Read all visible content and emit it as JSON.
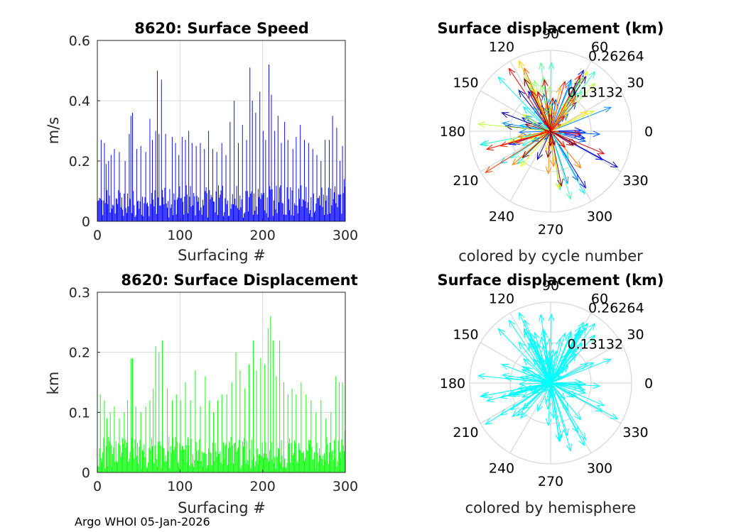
{
  "figure": {
    "footer": "Argo WHOI 05-Jan-2026"
  },
  "colors": {
    "speed_bars": "#0000ff",
    "disp_bars": "#00ff00",
    "hemisphere_arrows": "#00ffff",
    "grid": "#d9d9d9",
    "axis": "#262626"
  },
  "chart_data": [
    {
      "type": "bar",
      "title": "8620: Surface Speed",
      "xlabel": "Surfacing #",
      "ylabel": "m/s",
      "xlim": [
        0,
        300
      ],
      "ylim": [
        0,
        0.6
      ],
      "xticks": [
        "0",
        "100",
        "200",
        "300"
      ],
      "yticks": [
        "0",
        "0.2",
        "0.4",
        "0.6"
      ],
      "n": 300,
      "peaks": [
        [
          4,
          0.27
        ],
        [
          8,
          0.26
        ],
        [
          10,
          0.19
        ],
        [
          13,
          0.2
        ],
        [
          16,
          0.22
        ],
        [
          20,
          0.24
        ],
        [
          26,
          0.23
        ],
        [
          33,
          0.2
        ],
        [
          38,
          0.29
        ],
        [
          40,
          0.35
        ],
        [
          42,
          0.36
        ],
        [
          47,
          0.24
        ],
        [
          52,
          0.25
        ],
        [
          58,
          0.23
        ],
        [
          63,
          0.34
        ],
        [
          66,
          0.27
        ],
        [
          70,
          0.3
        ],
        [
          72,
          0.5
        ],
        [
          74,
          0.29
        ],
        [
          77,
          0.47
        ],
        [
          82,
          0.29
        ],
        [
          90,
          0.28
        ],
        [
          94,
          0.26
        ],
        [
          98,
          0.22
        ],
        [
          102,
          0.28
        ],
        [
          106,
          0.27
        ],
        [
          110,
          0.3
        ],
        [
          114,
          0.26
        ],
        [
          119,
          0.25
        ],
        [
          124,
          0.26
        ],
        [
          129,
          0.24
        ],
        [
          134,
          0.3
        ],
        [
          139,
          0.24
        ],
        [
          144,
          0.23
        ],
        [
          150,
          0.26
        ],
        [
          155,
          0.22
        ],
        [
          160,
          0.33
        ],
        [
          165,
          0.4
        ],
        [
          170,
          0.26
        ],
        [
          175,
          0.32
        ],
        [
          180,
          0.27
        ],
        [
          184,
          0.51
        ],
        [
          187,
          0.4
        ],
        [
          191,
          0.36
        ],
        [
          196,
          0.43
        ],
        [
          200,
          0.3
        ],
        [
          203,
          0.27
        ],
        [
          207,
          0.52
        ],
        [
          210,
          0.42
        ],
        [
          214,
          0.3
        ],
        [
          218,
          0.35
        ],
        [
          222,
          0.26
        ],
        [
          226,
          0.33
        ],
        [
          230,
          0.27
        ],
        [
          236,
          0.24
        ],
        [
          240,
          0.28
        ],
        [
          245,
          0.32
        ],
        [
          250,
          0.27
        ],
        [
          255,
          0.26
        ],
        [
          260,
          0.24
        ],
        [
          265,
          0.22
        ],
        [
          270,
          0.2
        ],
        [
          275,
          0.27
        ],
        [
          280,
          0.27
        ],
        [
          284,
          0.35
        ],
        [
          289,
          0.31
        ],
        [
          293,
          0.2
        ],
        [
          296,
          0.25
        ],
        [
          298,
          0.14
        ]
      ]
    },
    {
      "type": "bar",
      "title": "8620: Surface Displacement",
      "xlabel": "Surfacing #",
      "ylabel": "km",
      "xlim": [
        0,
        300
      ],
      "ylim": [
        0,
        0.3
      ],
      "xticks": [
        "0",
        "100",
        "200",
        "300"
      ],
      "yticks": [
        "0",
        "0.1",
        "0.2",
        "0.3"
      ],
      "n": 300,
      "peaks": [
        [
          3,
          0.13
        ],
        [
          8,
          0.12
        ],
        [
          11,
          0.09
        ],
        [
          15,
          0.1
        ],
        [
          20,
          0.11
        ],
        [
          26,
          0.09
        ],
        [
          32,
          0.1
        ],
        [
          36,
          0.12
        ],
        [
          40,
          0.19
        ],
        [
          42,
          0.19
        ],
        [
          46,
          0.11
        ],
        [
          52,
          0.1
        ],
        [
          58,
          0.11
        ],
        [
          63,
          0.12
        ],
        [
          67,
          0.14
        ],
        [
          70,
          0.21
        ],
        [
          74,
          0.2
        ],
        [
          78,
          0.22
        ],
        [
          84,
          0.14
        ],
        [
          90,
          0.12
        ],
        [
          95,
          0.13
        ],
        [
          100,
          0.12
        ],
        [
          106,
          0.15
        ],
        [
          112,
          0.12
        ],
        [
          118,
          0.17
        ],
        [
          124,
          0.11
        ],
        [
          130,
          0.16
        ],
        [
          135,
          0.12
        ],
        [
          140,
          0.1
        ],
        [
          145,
          0.12
        ],
        [
          150,
          0.13
        ],
        [
          156,
          0.13
        ],
        [
          162,
          0.15
        ],
        [
          167,
          0.2
        ],
        [
          172,
          0.17
        ],
        [
          178,
          0.14
        ],
        [
          183,
          0.18
        ],
        [
          188,
          0.22
        ],
        [
          192,
          0.17
        ],
        [
          197,
          0.19
        ],
        [
          202,
          0.18
        ],
        [
          206,
          0.24
        ],
        [
          209,
          0.26
        ],
        [
          212,
          0.22
        ],
        [
          216,
          0.16
        ],
        [
          220,
          0.22
        ],
        [
          225,
          0.15
        ],
        [
          230,
          0.13
        ],
        [
          235,
          0.14
        ],
        [
          240,
          0.13
        ],
        [
          246,
          0.15
        ],
        [
          252,
          0.13
        ],
        [
          258,
          0.12
        ],
        [
          264,
          0.1
        ],
        [
          270,
          0.12
        ],
        [
          276,
          0.09
        ],
        [
          282,
          0.1
        ],
        [
          288,
          0.16
        ],
        [
          292,
          0.15
        ],
        [
          296,
          0.15
        ],
        [
          299,
          0.07
        ]
      ]
    },
    {
      "type": "polar-compass",
      "title": "Surface displacement (km)",
      "caption": "colored by cycle number",
      "rmax": 0.26264,
      "rings": [
        "0.13132",
        "0.26264"
      ],
      "angle_labels": [
        "0",
        "30",
        "60",
        "90",
        "120",
        "150",
        "180",
        "210",
        "240",
        "270",
        "300",
        "330"
      ],
      "color_mode": "cycle",
      "n_arrows": 180,
      "arrow_limit": 0.26
    },
    {
      "type": "polar-compass",
      "title": "Surface displacement (km)",
      "caption": "colored by hemisphere",
      "rmax": 0.26264,
      "rings": [
        "0.13132",
        "0.26264"
      ],
      "angle_labels": [
        "0",
        "30",
        "60",
        "90",
        "120",
        "150",
        "180",
        "210",
        "240",
        "270",
        "300",
        "330"
      ],
      "color_mode": "hemisphere",
      "n_arrows": 180,
      "arrow_limit": 0.26
    }
  ]
}
